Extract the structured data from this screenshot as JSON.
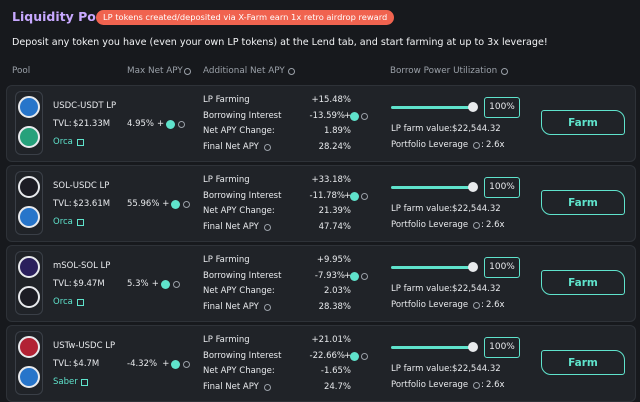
{
  "header": {
    "title": "Liquidity Pools",
    "banner": "LP tokens created/deposited via X-Farm earn 1x retro airdrop reward",
    "description": "Deposit any token you have (even your own LP tokens) at the Lend tab, and start farming at up to 3x leverage!"
  },
  "columns": [
    "Pool",
    "Max Net APY",
    "Additional Net APY",
    "Borrow Power Utilization"
  ],
  "labels": {
    "tvl": "TVL:",
    "plus": "+",
    "lp_farming": "LP Farming",
    "borrowing_interest": "Borrowing Interest",
    "net_apy_change": "Net APY Change:",
    "final_net_apy": "Final Net APY",
    "lp_farm_value": "LP farm value:",
    "portfolio_leverage": "Portfolio Leverage",
    "colon": ":",
    "button": "Farm"
  },
  "rows": [
    {
      "pair": "USDC-USDT LP",
      "tvl": "$21.33M",
      "source": "Orca",
      "max_net_apy": "4.95%",
      "lp_farming": "+15.48%",
      "borrowing_interest": "-13.59%",
      "net_apy_change": "1.89%",
      "final_net_apy": "28.24%",
      "utilization": "100%",
      "lp_farm_value": "$22,544.32",
      "portfolio_leverage": "2.6x"
    },
    {
      "pair": "SOL-USDC LP",
      "tvl": "$23.61M",
      "source": "Orca",
      "max_net_apy": "55.96%",
      "lp_farming": "+33.18%",
      "borrowing_interest": "-11.78%",
      "net_apy_change": "21.39%",
      "final_net_apy": "47.74%",
      "utilization": "100%",
      "lp_farm_value": "$22,544.32",
      "portfolio_leverage": "2.6x"
    },
    {
      "pair": "mSOL-SOL LP",
      "tvl": "$9.47M",
      "source": "Orca",
      "max_net_apy": "5.3%",
      "lp_farming": "+9.95%",
      "borrowing_interest": "-7.93%",
      "net_apy_change": "2.03%",
      "final_net_apy": "28.38%",
      "utilization": "100%",
      "lp_farm_value": "$22,544.32",
      "portfolio_leverage": "2.6x"
    },
    {
      "pair": "USTw-USDC LP",
      "tvl": "$4.7M",
      "source": "Saber",
      "max_net_apy": "-4.32%",
      "lp_farming": "+21.01%",
      "borrowing_interest": "-22.66%",
      "net_apy_change": "-1.65%",
      "final_net_apy": "24.7%",
      "utilization": "100%",
      "lp_farm_value": "$22,544.32",
      "portfolio_leverage": "2.6x"
    }
  ]
}
